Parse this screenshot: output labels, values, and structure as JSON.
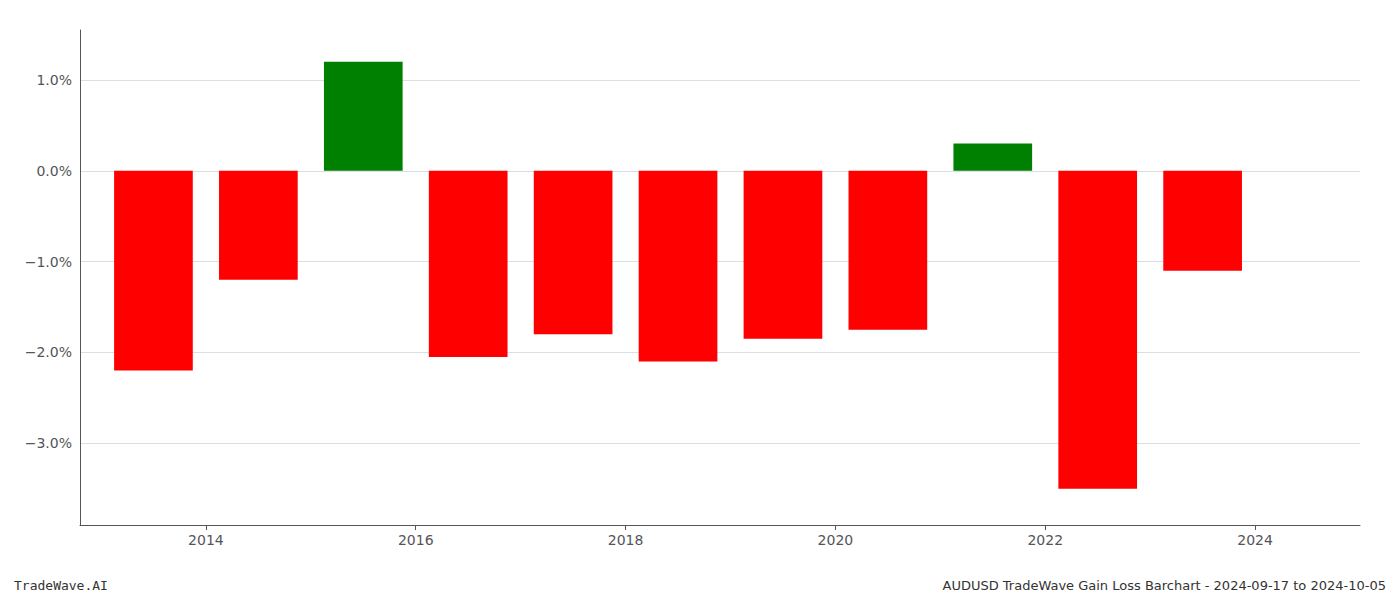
{
  "chart_data": {
    "type": "bar",
    "x": [
      2013.5,
      2014.5,
      2015.5,
      2016.5,
      2017.5,
      2018.5,
      2019.5,
      2020.5,
      2021.5,
      2022.5,
      2023.5
    ],
    "values": [
      -2.2,
      -1.2,
      1.2,
      -2.05,
      -1.8,
      -2.1,
      -1.85,
      -1.75,
      0.3,
      -3.5,
      -1.1
    ],
    "colors": [
      "#ff0000",
      "#ff0000",
      "#008000",
      "#ff0000",
      "#ff0000",
      "#ff0000",
      "#ff0000",
      "#ff0000",
      "#008000",
      "#ff0000",
      "#ff0000"
    ],
    "xlim": [
      2012.8,
      2025.0
    ],
    "xticks": [
      2014,
      2016,
      2018,
      2020,
      2022,
      2024
    ],
    "ylim": [
      -3.9,
      1.55
    ],
    "yticks": [
      {
        "value": 1.0,
        "label": "1.0%"
      },
      {
        "value": 0.0,
        "label": "0.0%"
      },
      {
        "value": -1.0,
        "label": "−1.0%"
      },
      {
        "value": -2.0,
        "label": "−2.0%"
      },
      {
        "value": -3.0,
        "label": "−3.0%"
      }
    ],
    "grid": true,
    "annotations": [
      "TradeWave.AI",
      "AUDUSD TradeWave Gain Loss Barchart - 2024-09-17 to 2024-10-05"
    ]
  }
}
